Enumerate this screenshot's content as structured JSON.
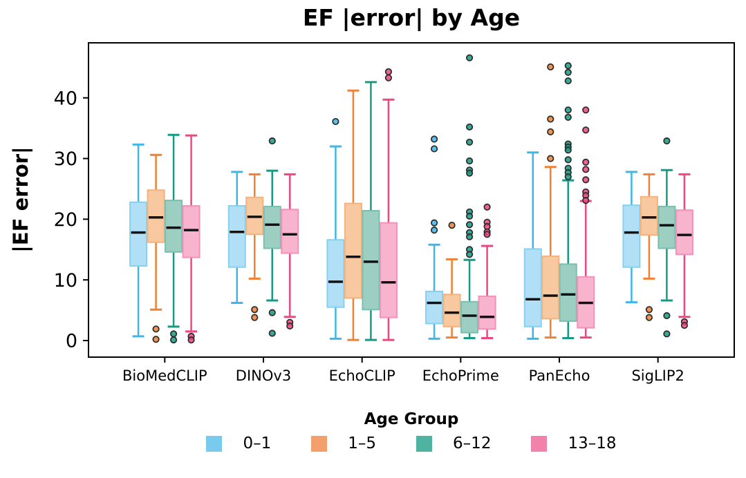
{
  "chart_data": {
    "type": "boxplot",
    "title": "EF |error| by Age",
    "ylabel": "|EF error|",
    "xlabel": "",
    "legend_title": "Age Group",
    "legend_position": "bottom",
    "grid": false,
    "categories": [
      "BioMedCLIP",
      "DINOv3",
      "EchoCLIP",
      "EchoPrime",
      "PanEcho",
      "SigLIP2"
    ],
    "yticks": [
      0,
      10,
      20,
      30,
      40
    ],
    "ylim": [
      -2.73,
      49.07
    ],
    "colors": {
      "median": "#111111",
      "outlier_edge": "#2e2e2e",
      "axis": "#000000"
    },
    "series": [
      {
        "name": "0–1",
        "line": "#3DB6E9",
        "fill": "#B0DFF6",
        "edge": "#86D0F2",
        "swatch": "#79CBEE",
        "boxes": [
          {
            "whislo": 0.7,
            "q1": 12.3,
            "med": 17.8,
            "q3": 22.8,
            "whishi": 32.3,
            "outliers": []
          },
          {
            "whislo": 6.2,
            "q1": 12.1,
            "med": 17.9,
            "q3": 22.2,
            "whishi": 27.8,
            "outliers": []
          },
          {
            "whislo": 0.3,
            "q1": 5.5,
            "med": 9.7,
            "q3": 16.6,
            "whishi": 32.0,
            "outliers": [
              36.1
            ]
          },
          {
            "whislo": 0.3,
            "q1": 2.8,
            "med": 6.2,
            "q3": 8.1,
            "whishi": 15.8,
            "outliers": [
              33.2,
              31.6,
              19.4,
              18.2
            ]
          },
          {
            "whislo": 0.3,
            "q1": 2.3,
            "med": 6.8,
            "q3": 15.1,
            "whishi": 31.0,
            "outliers": []
          },
          {
            "whislo": 6.3,
            "q1": 12.1,
            "med": 17.8,
            "q3": 22.3,
            "whishi": 27.8,
            "outliers": []
          }
        ]
      },
      {
        "name": "1–5",
        "line": "#F08033",
        "fill": "#F8C9A0",
        "edge": "#F5B27C",
        "swatch": "#F3A06D",
        "boxes": [
          {
            "whislo": 5.1,
            "q1": 16.2,
            "med": 20.3,
            "q3": 24.8,
            "whishi": 30.6,
            "outliers": [
              1.9,
              0.2
            ]
          },
          {
            "whislo": 10.2,
            "q1": 17.5,
            "med": 20.4,
            "q3": 23.6,
            "whishi": 27.4,
            "outliers": [
              5.1,
              3.8
            ]
          },
          {
            "whislo": 0.1,
            "q1": 7.0,
            "med": 13.8,
            "q3": 22.6,
            "whishi": 41.2,
            "outliers": []
          },
          {
            "whislo": 0.5,
            "q1": 2.3,
            "med": 4.6,
            "q3": 7.6,
            "whishi": 13.4,
            "outliers": [
              19.0
            ]
          },
          {
            "whislo": 0.5,
            "q1": 3.6,
            "med": 7.4,
            "q3": 13.9,
            "whishi": 28.6,
            "outliers": [
              45.1,
              36.5,
              34.4,
              30.0
            ]
          },
          {
            "whislo": 10.2,
            "q1": 17.4,
            "med": 20.3,
            "q3": 23.7,
            "whishi": 27.4,
            "outliers": [
              5.1,
              3.8
            ]
          }
        ]
      },
      {
        "name": "6–12",
        "line": "#159A83",
        "fill": "#9CCEC2",
        "edge": "#79BFAF",
        "swatch": "#4FB3A2",
        "boxes": [
          {
            "whislo": 2.3,
            "q1": 14.6,
            "med": 18.6,
            "q3": 23.1,
            "whishi": 33.9,
            "outliers": [
              1.1,
              0.1
            ]
          },
          {
            "whislo": 6.6,
            "q1": 15.2,
            "med": 19.1,
            "q3": 22.1,
            "whishi": 28.0,
            "outliers": [
              32.9,
              4.6,
              1.2
            ]
          },
          {
            "whislo": 0.1,
            "q1": 5.1,
            "med": 13.0,
            "q3": 21.4,
            "whishi": 42.6,
            "outliers": []
          },
          {
            "whislo": 0.4,
            "q1": 1.3,
            "med": 4.1,
            "q3": 6.4,
            "whishi": 13.3,
            "outliers": [
              46.6,
              35.2,
              32.7,
              29.6,
              28.1,
              27.6,
              21.2,
              20.5,
              19.1,
              17.8,
              17.1,
              15.0,
              14.2
            ]
          },
          {
            "whislo": 0.4,
            "q1": 3.2,
            "med": 7.6,
            "q3": 12.6,
            "whishi": 26.4,
            "outliers": [
              45.3,
              44.2,
              42.8,
              38.0,
              36.8,
              32.4,
              31.9,
              31.4,
              29.8,
              28.4,
              27.7,
              27.0
            ]
          },
          {
            "whislo": 6.6,
            "q1": 15.2,
            "med": 19.0,
            "q3": 22.1,
            "whishi": 28.1,
            "outliers": [
              32.9,
              4.1,
              1.1
            ]
          }
        ]
      },
      {
        "name": "13–18",
        "line": "#F04580",
        "fill": "#F8B3CD",
        "edge": "#F391BA",
        "swatch": "#F382AB",
        "boxes": [
          {
            "whislo": 1.5,
            "q1": 13.7,
            "med": 18.2,
            "q3": 22.2,
            "whishi": 33.8,
            "outliers": [
              0.7,
              0.1
            ]
          },
          {
            "whislo": 3.9,
            "q1": 14.4,
            "med": 17.5,
            "q3": 21.6,
            "whishi": 27.4,
            "outliers": [
              3.0,
              2.4
            ]
          },
          {
            "whislo": 0.1,
            "q1": 3.8,
            "med": 9.6,
            "q3": 19.4,
            "whishi": 39.7,
            "outliers": [
              44.3,
              43.3
            ]
          },
          {
            "whislo": 0.4,
            "q1": 1.9,
            "med": 3.9,
            "q3": 7.3,
            "whishi": 15.6,
            "outliers": [
              22.0,
              19.5,
              18.8,
              17.9,
              17.5
            ]
          },
          {
            "whislo": 0.5,
            "q1": 2.1,
            "med": 6.2,
            "q3": 10.5,
            "whishi": 23.0,
            "outliers": [
              38.0,
              34.7,
              29.4,
              28.2,
              26.5,
              24.5,
              23.9,
              23.1
            ]
          },
          {
            "whislo": 3.9,
            "q1": 14.2,
            "med": 17.4,
            "q3": 21.5,
            "whishi": 27.4,
            "outliers": [
              3.1,
              2.5
            ]
          }
        ]
      }
    ]
  }
}
